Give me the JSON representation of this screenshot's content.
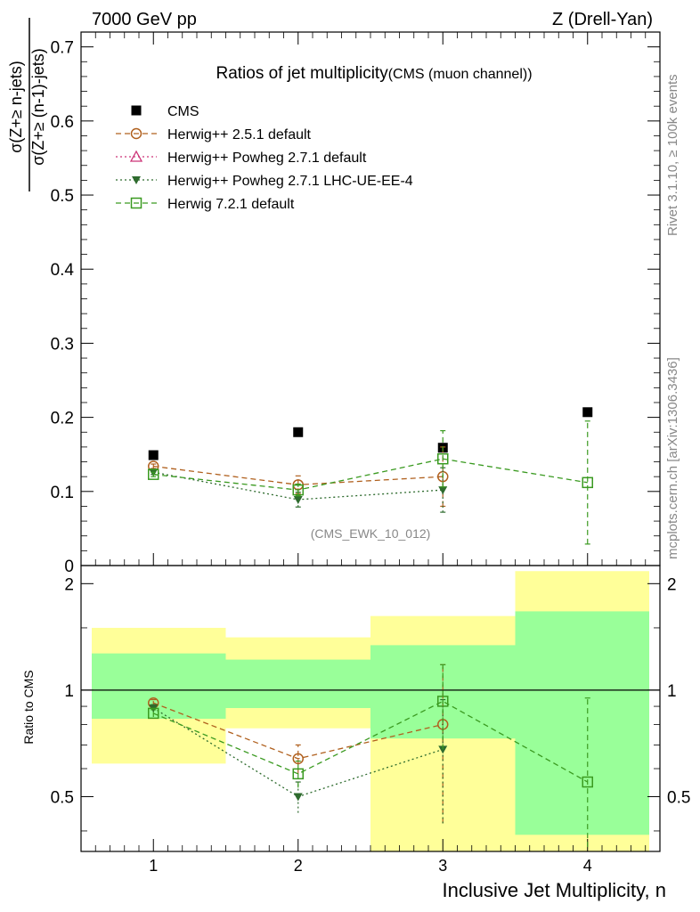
{
  "header": {
    "left": "7000 GeV pp",
    "right": "Z (Drell-Yan)"
  },
  "side_text": {
    "rivet": "Rivet 3.1.10, ≥ 100k events",
    "mcplots": "mcplots.cern.ch [arXiv:1306.3436]"
  },
  "colors": {
    "cms": "#000000",
    "herwig251": "#b0601e",
    "powheg271": "#cc3377",
    "powheg_lhc": "#2e6b2e",
    "herwig721": "#3a9a20",
    "band_inner": "#99ff99",
    "band_outer": "#ffff99"
  },
  "chart_data": [
    {
      "type": "scatter",
      "title": "Ratios of jet multiplicity",
      "title_suffix": "(CMS (muon channel))",
      "ylabel_numerator": "σ(Z+≥ n-jets)",
      "ylabel_denominator": "σ(Z+≥ (n-1)-jets)",
      "xlabel": "Inclusive Jet Multiplicity, n",
      "xlim": [
        0.5,
        4.5
      ],
      "ylim": [
        0,
        0.72
      ],
      "yticks": [
        0,
        0.1,
        0.2,
        0.3,
        0.4,
        0.5,
        0.6,
        0.7
      ],
      "ytick_labels": [
        "0",
        "0.1",
        "0.2",
        "0.3",
        "0.4",
        "0.5",
        "0.6",
        "0.7"
      ],
      "xticks": [
        1,
        2,
        3,
        4
      ],
      "xtick_labels": [
        "1",
        "2",
        "3",
        "4"
      ],
      "analysis_tag": "(CMS_EWK_10_012)",
      "legend": [
        {
          "name": "CMS",
          "key": "cms"
        },
        {
          "name": "Herwig++ 2.5.1 default",
          "key": "herwig251"
        },
        {
          "name": "Herwig++ Powheg 2.7.1 default",
          "key": "powheg271"
        },
        {
          "name": "Herwig++ Powheg 2.7.1 LHC-UE-EE-4",
          "key": "powheg_lhc"
        },
        {
          "name": "Herwig 7.2.1 default",
          "key": "herwig721"
        }
      ],
      "series": [
        {
          "name": "CMS",
          "key": "cms",
          "x": [
            1,
            2,
            3,
            4
          ],
          "values": [
            0.149,
            0.18,
            0.159,
            0.207
          ],
          "err": [
            0,
            0,
            0,
            0
          ]
        },
        {
          "name": "Herwig++ 2.5.1 default",
          "key": "herwig251",
          "x": [
            1,
            2,
            3
          ],
          "values": [
            0.134,
            0.109,
            0.12
          ],
          "err": [
            0.003,
            0.012,
            0.04
          ]
        },
        {
          "name": "Herwig++ Powheg 2.7.1 default",
          "key": "powheg271",
          "x": [],
          "values": [],
          "err": []
        },
        {
          "name": "Herwig++ Powheg 2.7.1 LHC-UE-EE-4",
          "key": "powheg_lhc",
          "x": [
            1,
            2,
            3
          ],
          "values": [
            0.126,
            0.089,
            0.102
          ],
          "err": [
            0.003,
            0.01,
            0.03
          ]
        },
        {
          "name": "Herwig 7.2.1 default",
          "key": "herwig721",
          "x": [
            1,
            2,
            3,
            4
          ],
          "values": [
            0.123,
            0.102,
            0.144,
            0.112
          ],
          "err": [
            0.003,
            0.008,
            0.038,
            0.083
          ]
        }
      ]
    },
    {
      "type": "scatter",
      "ylabel": "Ratio to CMS",
      "xlim": [
        0.5,
        4.5
      ],
      "ylim": [
        0.35,
        2.25
      ],
      "yticks": [
        0.5,
        1,
        2
      ],
      "ytick_labels": [
        "0.5",
        "1",
        "2"
      ],
      "xticks": [
        1,
        2,
        3,
        4
      ],
      "bands": {
        "edges": [
          0.5,
          1.5,
          2.5,
          3.5,
          4.5
        ],
        "inner": [
          [
            0.83,
            1.27
          ],
          [
            0.89,
            1.22
          ],
          [
            0.73,
            1.34
          ],
          [
            0.39,
            1.67
          ]
        ],
        "outer": [
          [
            0.62,
            1.5
          ],
          [
            0.78,
            1.41
          ],
          [
            0.35,
            1.62
          ],
          [
            0.35,
            2.17
          ]
        ]
      },
      "series": [
        {
          "name": "Herwig++ 2.5.1 default",
          "key": "herwig251",
          "x": [
            1,
            2,
            3
          ],
          "values": [
            0.92,
            0.64,
            0.8
          ],
          "err": [
            0.02,
            0.06,
            0.38
          ]
        },
        {
          "name": "Herwig++ Powheg 2.7.1 LHC-UE-EE-4",
          "key": "powheg_lhc",
          "x": [
            1,
            2,
            3
          ],
          "values": [
            0.89,
            0.5,
            0.68
          ],
          "err": [
            0.02,
            0.05,
            0.26
          ]
        },
        {
          "name": "Herwig 7.2.1 default",
          "key": "herwig721",
          "x": [
            1,
            2,
            3,
            4
          ],
          "values": [
            0.86,
            0.58,
            0.93,
            0.55
          ],
          "err": [
            0.02,
            0.05,
            0.25,
            0.4
          ]
        }
      ]
    }
  ]
}
